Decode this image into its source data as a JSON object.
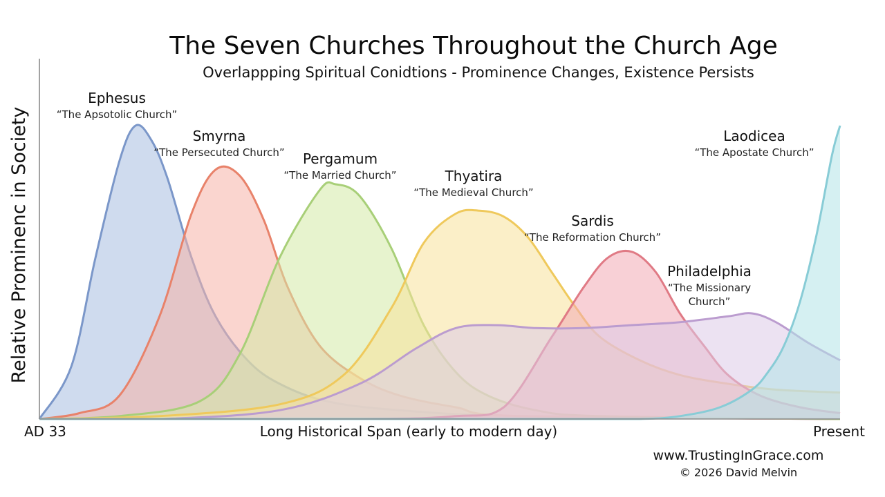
{
  "chart_data": {
    "type": "area",
    "title": "The Seven Churches Throughout the Church Age",
    "subtitle": "Overlappping Spiritual Conidtions - Prominence Changes, Existence Persists",
    "ylabel": "Relative Prominenc in Society",
    "xlabel": "Long Historical Span (early to modern day)",
    "x_start_label": "AD 33",
    "x_end_label": "Present",
    "xlim": [
      0,
      100
    ],
    "ylim": [
      0,
      100
    ],
    "grid": false,
    "series": [
      {
        "name": "Ephesus",
        "nickname_lines": [
          "“The Apsotolic Church”"
        ],
        "color": "#7b97c9",
        "fill": "#a8bde0",
        "x": [
          0,
          4,
          7,
          10,
          12,
          14,
          16,
          19,
          22,
          26,
          30,
          36,
          45,
          60,
          100
        ],
        "y": [
          0,
          18,
          55,
          88,
          100,
          95,
          82,
          55,
          35,
          20,
          12,
          6,
          3,
          1,
          0
        ]
      },
      {
        "name": "Smyrna",
        "nickname_lines": [
          "“The Persecuted Church”"
        ],
        "color": "#e8826a",
        "fill": "#f5b3a7",
        "x": [
          0,
          5,
          10,
          15,
          19,
          22,
          25,
          28,
          31,
          35,
          40,
          45,
          52,
          60,
          100
        ],
        "y": [
          0,
          2,
          8,
          35,
          70,
          85,
          83,
          68,
          45,
          25,
          14,
          8,
          4,
          1,
          0
        ]
      },
      {
        "name": "Pergamum",
        "nickname_lines": [
          "“The Married Church”"
        ],
        "color": "#a8cf78",
        "fill": "#d3e9a5",
        "x": [
          0,
          10,
          20,
          25,
          30,
          35,
          37,
          40,
          44,
          48,
          52,
          56,
          62,
          70,
          100
        ],
        "y": [
          0,
          1,
          6,
          22,
          55,
          78,
          80,
          76,
          58,
          32,
          16,
          8,
          3,
          1,
          0
        ]
      },
      {
        "name": "Thyatira",
        "nickname_lines": [
          "“The Medieval Church”"
        ],
        "color": "#efc95c",
        "fill": "#f7e29a",
        "x": [
          0,
          15,
          30,
          38,
          44,
          48,
          52,
          55,
          58,
          61,
          64,
          67,
          70,
          75,
          80,
          86,
          92,
          100
        ],
        "y": [
          0,
          1,
          5,
          15,
          38,
          60,
          70,
          71,
          69,
          62,
          50,
          38,
          28,
          20,
          15,
          12,
          10,
          9
        ]
      },
      {
        "name": "Sardis",
        "nickname_lines": [
          "“The Reformation Church”"
        ],
        "color": "#e07a85",
        "fill": "#f2aab5",
        "x": [
          0,
          40,
          52,
          58,
          64,
          68,
          71,
          74,
          77,
          80,
          83,
          86,
          90,
          95,
          100
        ],
        "y": [
          0,
          0,
          1,
          4,
          28,
          45,
          55,
          57,
          50,
          36,
          25,
          15,
          8,
          4,
          2
        ]
      },
      {
        "name": "Philadelphia",
        "nickname_lines": [
          "“The Missionary",
          "Church”"
        ],
        "color": "#bb9ccf",
        "fill": "#dccbe8",
        "x": [
          0,
          15,
          30,
          40,
          47,
          52,
          57,
          62,
          68,
          74,
          80,
          86,
          89,
          92,
          96,
          100
        ],
        "y": [
          0,
          0,
          3,
          12,
          24,
          31,
          32,
          31,
          31,
          32,
          33,
          35,
          36,
          33,
          26,
          20
        ]
      },
      {
        "name": "Laodicea",
        "nickname_lines": [
          "“The Apostate Church”"
        ],
        "color": "#88ccd6",
        "fill": "#b3e4e8",
        "x": [
          0,
          65,
          75,
          80,
          85,
          89,
          91,
          93,
          95,
          97,
          99,
          100
        ],
        "y": [
          0,
          0,
          0,
          1,
          4,
          10,
          16,
          25,
          40,
          62,
          90,
          100
        ]
      }
    ]
  },
  "footer": {
    "website": "www.TrustingInGrace.com",
    "copyright": "© 2026 David Melvin"
  }
}
